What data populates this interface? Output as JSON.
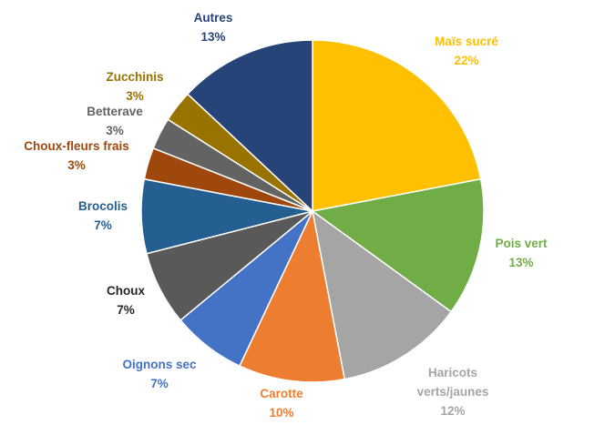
{
  "chart_data": {
    "type": "pie",
    "title": "",
    "slices": [
      {
        "label": "Maïs sucré",
        "value": 22,
        "pct_label": "22%",
        "color": "#FFC000",
        "label_color": "#FFC000"
      },
      {
        "label": "Pois vert",
        "value": 13,
        "pct_label": "13%",
        "color": "#70AD47",
        "label_color": "#70AD47"
      },
      {
        "label": "Haricots verts/jaunes",
        "label_lines": [
          "Haricots",
          "verts/jaunes"
        ],
        "value": 12,
        "pct_label": "12%",
        "color": "#A5A5A5",
        "label_color": "#A5A5A5"
      },
      {
        "label": "Carotte",
        "value": 10,
        "pct_label": "10%",
        "color": "#ED7D31",
        "label_color": "#ED7D31"
      },
      {
        "label": "Oignons sec",
        "value": 7,
        "pct_label": "7%",
        "color": "#4472C4",
        "label_color": "#4472C4"
      },
      {
        "label": "Choux",
        "value": 7,
        "pct_label": "7%",
        "color": "#595959",
        "label_color": "#262626"
      },
      {
        "label": "Brocolis",
        "value": 7,
        "pct_label": "7%",
        "color": "#255E91",
        "label_color": "#255E91"
      },
      {
        "label": "Choux-fleurs frais",
        "value": 3,
        "pct_label": "3%",
        "color": "#9E480E",
        "label_color": "#9E480E"
      },
      {
        "label": "Betterave",
        "value": 3,
        "pct_label": "3%",
        "color": "#636363",
        "label_color": "#636363"
      },
      {
        "label": "Zucchinis",
        "value": 3,
        "pct_label": "3%",
        "color": "#997300",
        "label_color": "#997300"
      },
      {
        "label": "Autres",
        "value": 13,
        "pct_label": "13%",
        "color": "#264478",
        "label_color": "#264478"
      }
    ],
    "legend": "none"
  }
}
